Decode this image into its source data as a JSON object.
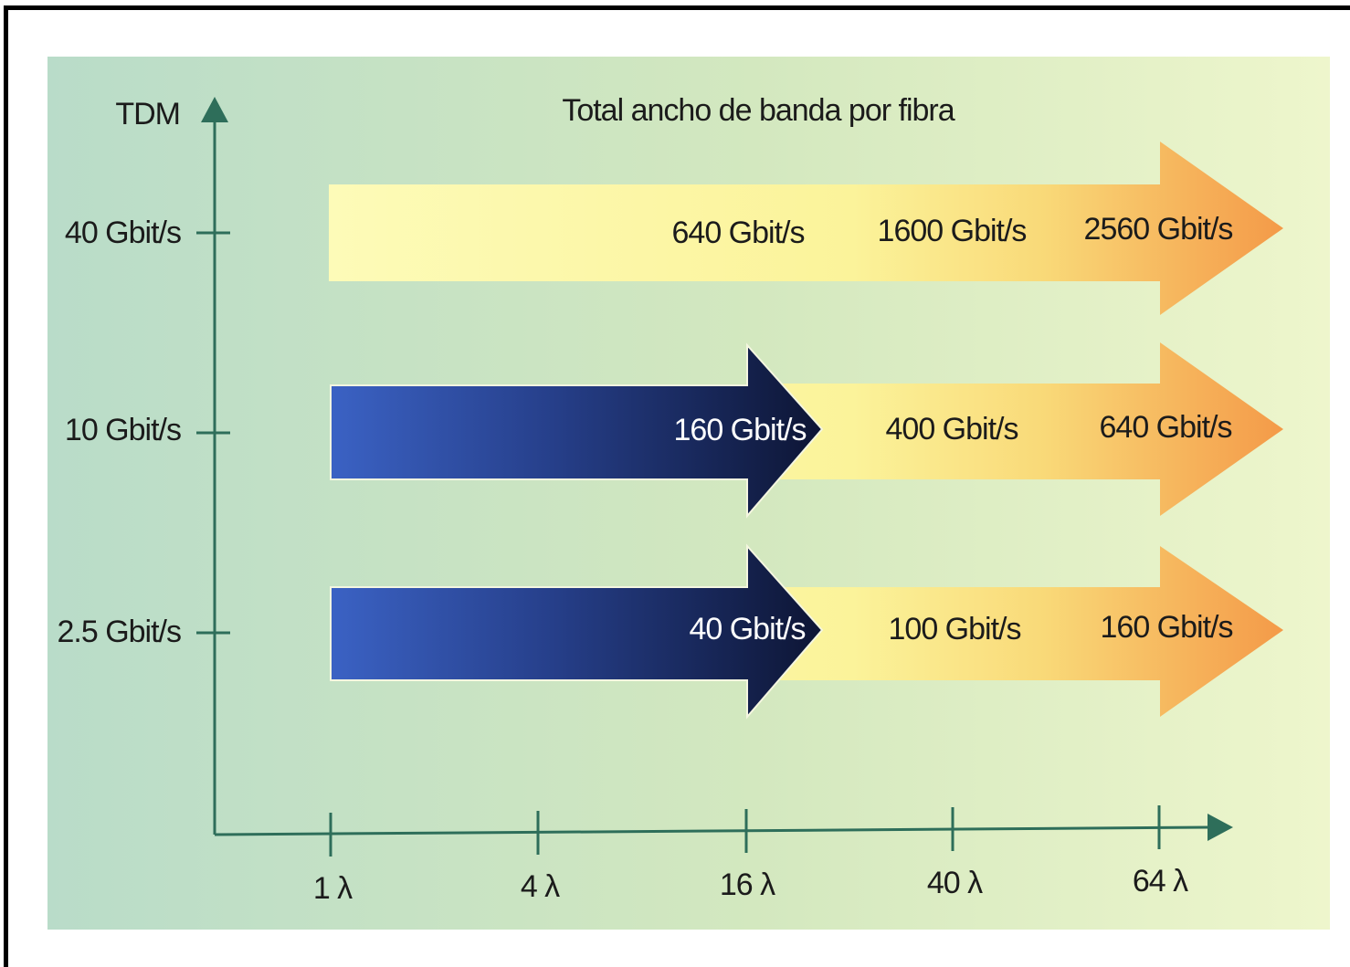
{
  "title": "Total ancho de banda por fibra",
  "y_axis": {
    "label": "TDM",
    "ticks": [
      "40 Gbit/s",
      "10 Gbit/s",
      "2.5 Gbit/s"
    ]
  },
  "x_axis": {
    "ticks": [
      "1 λ",
      "4 λ",
      "16 λ",
      "40 λ",
      "64 λ"
    ]
  },
  "rows": [
    {
      "tdm": "40 Gbit/s",
      "values": [
        "640 Gbit/s",
        "1600 Gbit/s",
        "2560 Gbit/s"
      ]
    },
    {
      "tdm": "10 Gbit/s",
      "values": [
        "160 Gbit/s",
        "400 Gbit/s",
        "640 Gbit/s"
      ]
    },
    {
      "tdm": "2.5 Gbit/s",
      "values": [
        "40 Gbit/s",
        "100 Gbit/s",
        "160 Gbit/s"
      ]
    }
  ],
  "colors": {
    "axis": "#2e6e5a",
    "background_left": "#b9dcc9",
    "background_right": "#eef6cc",
    "arrow_yellow": "#fbf8a8",
    "arrow_orange": "#f6a650",
    "arrow_blue_left": "#3a5fc0",
    "arrow_blue_right": "#101a3c"
  }
}
